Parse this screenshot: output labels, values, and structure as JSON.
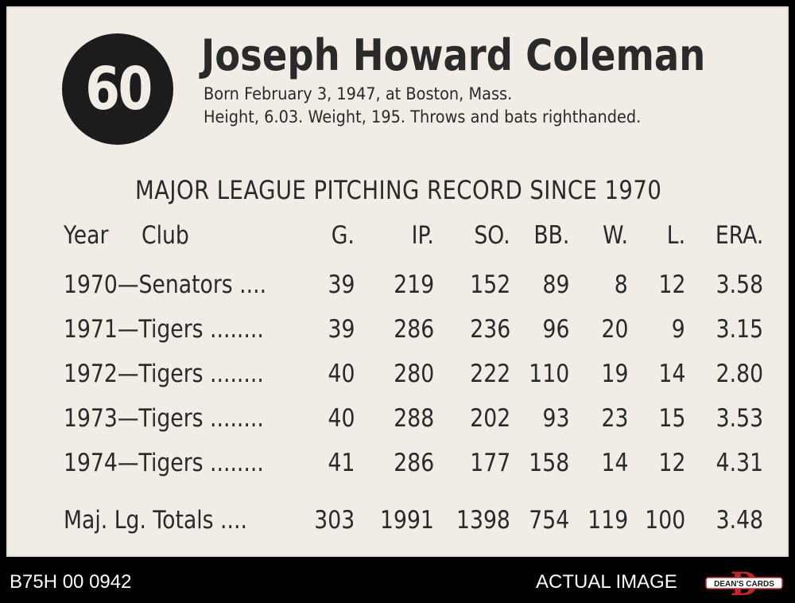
{
  "card": {
    "number": "60",
    "name": "Joseph Howard Coleman",
    "bio_line1": "Born February 3, 1947, at Boston, Mass.",
    "bio_line2": "Height, 6.03. Weight, 195. Throws and bats righthanded."
  },
  "record": {
    "title": "MAJOR LEAGUE PITCHING RECORD SINCE 1970",
    "headers": [
      "Year",
      "Club",
      "G.",
      "IP.",
      "SO.",
      "BB.",
      "W.",
      "L.",
      "ERA."
    ],
    "rows": [
      {
        "yearclub": "1970—Senators ....",
        "values": [
          "39",
          "219",
          "152",
          "89",
          "8",
          "12",
          "3.58"
        ]
      },
      {
        "yearclub": "1971—Tigers ........",
        "values": [
          "39",
          "286",
          "236",
          "96",
          "20",
          "9",
          "3.15"
        ]
      },
      {
        "yearclub": "1972—Tigers ........",
        "values": [
          "40",
          "280",
          "222",
          "110",
          "19",
          "14",
          "2.80"
        ]
      },
      {
        "yearclub": "1973—Tigers ........",
        "values": [
          "40",
          "288",
          "202",
          "93",
          "23",
          "15",
          "3.53"
        ]
      },
      {
        "yearclub": "1974—Tigers ........",
        "values": [
          "41",
          "286",
          "177",
          "158",
          "14",
          "12",
          "4.31"
        ]
      }
    ],
    "totals": {
      "label": "Maj. Lg. Totals ....",
      "values": [
        "303",
        "1991",
        "1398",
        "754",
        "119",
        "100",
        "3.48"
      ]
    }
  },
  "footer": {
    "code": "B75H 00 0942",
    "actual": "ACTUAL IMAGE",
    "logo_text": "DEAN'S CARDS",
    "logo_letter": "D",
    "logo_color": "#c0282d"
  }
}
